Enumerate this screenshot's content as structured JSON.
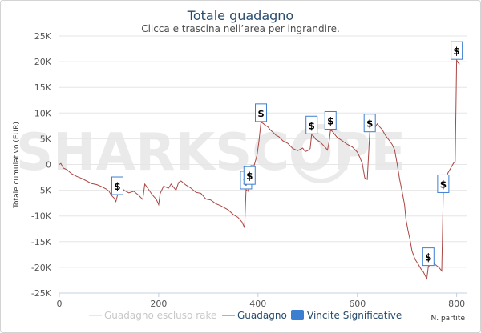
{
  "chart_data": {
    "type": "line",
    "title": "Totale guadagno",
    "subtitle": "Clicca e trascina nell’area per ingrandire.",
    "xlabel": "N. partite",
    "ylabel": "Totale cumulativo (EUR)",
    "xlim": [
      0,
      820
    ],
    "ylim": [
      -25000,
      25000
    ],
    "x_ticks": [
      0,
      200,
      400,
      600,
      800
    ],
    "x_tick_labels": [
      "0",
      "200",
      "400",
      "600",
      "800"
    ],
    "y_ticks": [
      -25000,
      -20000,
      -15000,
      -10000,
      -5000,
      0,
      5000,
      10000,
      15000,
      20000,
      25000
    ],
    "y_tick_labels": [
      "-25K",
      "-20K",
      "-15K",
      "-10K",
      "-5K",
      "0",
      "5K",
      "10K",
      "15K",
      "20K",
      "25K"
    ],
    "grid": "horizontal",
    "watermark": "SHARKSCOPE",
    "series": [
      {
        "name": "Guadagno escluso rake",
        "color": "#d0d0d0",
        "hidden": true,
        "points": []
      },
      {
        "name": "Guadagno",
        "color": "#aa4643",
        "points": [
          [
            0,
            0
          ],
          [
            3,
            200
          ],
          [
            8,
            -700
          ],
          [
            15,
            -1000
          ],
          [
            25,
            -1800
          ],
          [
            35,
            -2300
          ],
          [
            45,
            -2700
          ],
          [
            55,
            -3200
          ],
          [
            65,
            -3700
          ],
          [
            75,
            -3900
          ],
          [
            85,
            -4300
          ],
          [
            95,
            -4800
          ],
          [
            100,
            -5200
          ],
          [
            105,
            -6000
          ],
          [
            110,
            -6500
          ],
          [
            114,
            -7200
          ],
          [
            117,
            -6000
          ],
          [
            120,
            -3600
          ],
          [
            125,
            -4200
          ],
          [
            130,
            -5000
          ],
          [
            140,
            -5500
          ],
          [
            150,
            -5200
          ],
          [
            160,
            -6000
          ],
          [
            168,
            -6800
          ],
          [
            172,
            -3800
          ],
          [
            178,
            -4600
          ],
          [
            185,
            -5600
          ],
          [
            190,
            -6200
          ],
          [
            195,
            -6700
          ],
          [
            200,
            -7800
          ],
          [
            203,
            -5600
          ],
          [
            210,
            -4200
          ],
          [
            220,
            -4600
          ],
          [
            225,
            -3800
          ],
          [
            235,
            -5000
          ],
          [
            240,
            -3500
          ],
          [
            245,
            -3200
          ],
          [
            255,
            -4000
          ],
          [
            265,
            -4600
          ],
          [
            275,
            -5400
          ],
          [
            285,
            -5600
          ],
          [
            295,
            -6700
          ],
          [
            305,
            -6900
          ],
          [
            315,
            -7600
          ],
          [
            325,
            -8000
          ],
          [
            340,
            -8800
          ],
          [
            350,
            -9700
          ],
          [
            360,
            -10300
          ],
          [
            368,
            -11200
          ],
          [
            373,
            -12300
          ],
          [
            376,
            -4900
          ],
          [
            380,
            -5200
          ],
          [
            383,
            -4000
          ],
          [
            386,
            -200
          ],
          [
            392,
            -300
          ],
          [
            398,
            1800
          ],
          [
            402,
            4500
          ],
          [
            406,
            8200
          ],
          [
            410,
            8000
          ],
          [
            415,
            7600
          ],
          [
            420,
            7300
          ],
          [
            425,
            6700
          ],
          [
            430,
            6300
          ],
          [
            436,
            5700
          ],
          [
            442,
            5400
          ],
          [
            450,
            4600
          ],
          [
            460,
            4100
          ],
          [
            470,
            3100
          ],
          [
            480,
            2700
          ],
          [
            490,
            3200
          ],
          [
            495,
            2500
          ],
          [
            500,
            2700
          ],
          [
            505,
            3100
          ],
          [
            508,
            5800
          ],
          [
            512,
            5500
          ],
          [
            516,
            4900
          ],
          [
            525,
            4400
          ],
          [
            535,
            3400
          ],
          [
            540,
            2800
          ],
          [
            543,
            4300
          ],
          [
            546,
            6700
          ],
          [
            550,
            6400
          ],
          [
            560,
            5200
          ],
          [
            570,
            4600
          ],
          [
            580,
            3900
          ],
          [
            590,
            3400
          ],
          [
            600,
            2400
          ],
          [
            605,
            1400
          ],
          [
            610,
            200
          ],
          [
            615,
            -2600
          ],
          [
            620,
            -2900
          ],
          [
            625,
            6200
          ],
          [
            630,
            6800
          ],
          [
            635,
            7100
          ],
          [
            640,
            7900
          ],
          [
            645,
            7300
          ],
          [
            650,
            6800
          ],
          [
            655,
            5900
          ],
          [
            660,
            5200
          ],
          [
            665,
            4600
          ],
          [
            670,
            3900
          ],
          [
            675,
            2900
          ],
          [
            680,
            200
          ],
          [
            685,
            -2800
          ],
          [
            690,
            -5200
          ],
          [
            695,
            -7800
          ],
          [
            698,
            -10700
          ],
          [
            702,
            -12800
          ],
          [
            706,
            -14600
          ],
          [
            710,
            -16800
          ],
          [
            716,
            -18400
          ],
          [
            722,
            -19300
          ],
          [
            728,
            -20300
          ],
          [
            733,
            -20900
          ],
          [
            737,
            -21700
          ],
          [
            740,
            -22200
          ],
          [
            743,
            -19800
          ],
          [
            748,
            -19600
          ],
          [
            755,
            -19300
          ],
          [
            760,
            -19700
          ],
          [
            765,
            -20100
          ],
          [
            770,
            -20700
          ],
          [
            773,
            -5600
          ],
          [
            777,
            -3500
          ],
          [
            782,
            -1700
          ],
          [
            788,
            -700
          ],
          [
            794,
            300
          ],
          [
            797,
            600
          ],
          [
            800,
            20300
          ],
          [
            803,
            19800
          ],
          [
            806,
            19500
          ]
        ]
      },
      {
        "name": "Vincite Significative",
        "color": "#3c7fd0",
        "type": "flags",
        "flags": [
          {
            "x": 117,
            "y": -6000,
            "label": "$"
          },
          {
            "x": 376,
            "y": -4900,
            "label": "$"
          },
          {
            "x": 383,
            "y": -4000,
            "label": "$"
          },
          {
            "x": 406,
            "y": 8200,
            "label": "$"
          },
          {
            "x": 508,
            "y": 5800,
            "label": "$"
          },
          {
            "x": 546,
            "y": 6700,
            "label": "$"
          },
          {
            "x": 625,
            "y": 6200,
            "label": "$"
          },
          {
            "x": 743,
            "y": -19800,
            "label": "$"
          },
          {
            "x": 773,
            "y": -5600,
            "label": "$"
          },
          {
            "x": 800,
            "y": 20300,
            "label": "$"
          }
        ]
      }
    ]
  }
}
